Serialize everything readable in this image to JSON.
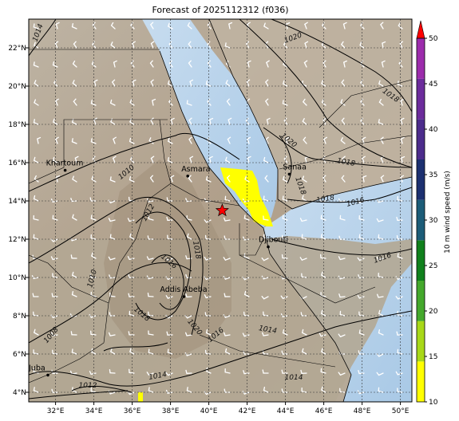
{
  "title": "Forecast of 2025112312 (f036)",
  "x_ticks": [
    "32°E",
    "34°E",
    "36°E",
    "38°E",
    "40°E",
    "42°E",
    "44°E",
    "46°E",
    "48°E",
    "50°E"
  ],
  "y_ticks": [
    "22°N",
    "20°N",
    "18°N",
    "16°N",
    "14°N",
    "12°N",
    "10°N",
    "8°N",
    "6°N",
    "4°N"
  ],
  "cities": [
    {
      "name": "Khartoum",
      "lon": 32.5,
      "lat": 15.6
    },
    {
      "name": "Asmara",
      "lon": 38.9,
      "lat": 15.3
    },
    {
      "name": "Sanaa",
      "lon": 44.2,
      "lat": 15.4
    },
    {
      "name": "Djibouti",
      "lon": 43.1,
      "lat": 11.6
    },
    {
      "name": "Addis Abeba",
      "lon": 38.7,
      "lat": 9.0
    },
    {
      "name": "Juba",
      "lon": 31.6,
      "lat": 4.9
    }
  ],
  "isobar_labels": [
    "1014",
    "1020",
    "1018",
    "1020",
    "1018",
    "1016",
    "1018",
    "1018",
    "1010",
    "1012",
    "1016",
    "1016",
    "1010",
    "1018",
    "1014",
    "1016",
    "1008",
    "1014",
    "1014",
    "1012",
    "1018",
    "1020"
  ],
  "marker": {
    "name": "star",
    "lon": 40.7,
    "lat": 13.5,
    "color": "#ff0000"
  },
  "colorbar": {
    "label": "10 m wind speed (m/s)",
    "ticks": [
      "10",
      "15",
      "20",
      "25",
      "30",
      "35",
      "40",
      "45",
      "50"
    ],
    "colors": [
      "#ffff00",
      "#a8d818",
      "#44a82c",
      "#10801c",
      "#1c5c78",
      "#1c3070",
      "#4c2c8c",
      "#6c2c9c",
      "#9c2cac"
    ],
    "extend_color": "#ff0000"
  },
  "chart_data": {
    "type": "map",
    "title": "Forecast of 2025112312 (f036)",
    "extent": {
      "lon": [
        30.6,
        50.6
      ],
      "lat": [
        3.5,
        23.5
      ]
    },
    "variable": "10 m wind speed (m/s)",
    "contour_levels": [
      1008,
      1010,
      1012,
      1014,
      1016,
      1018,
      1020
    ],
    "wind_speed_shading_min": 10,
    "wind_speed_shading_max": 50
  }
}
